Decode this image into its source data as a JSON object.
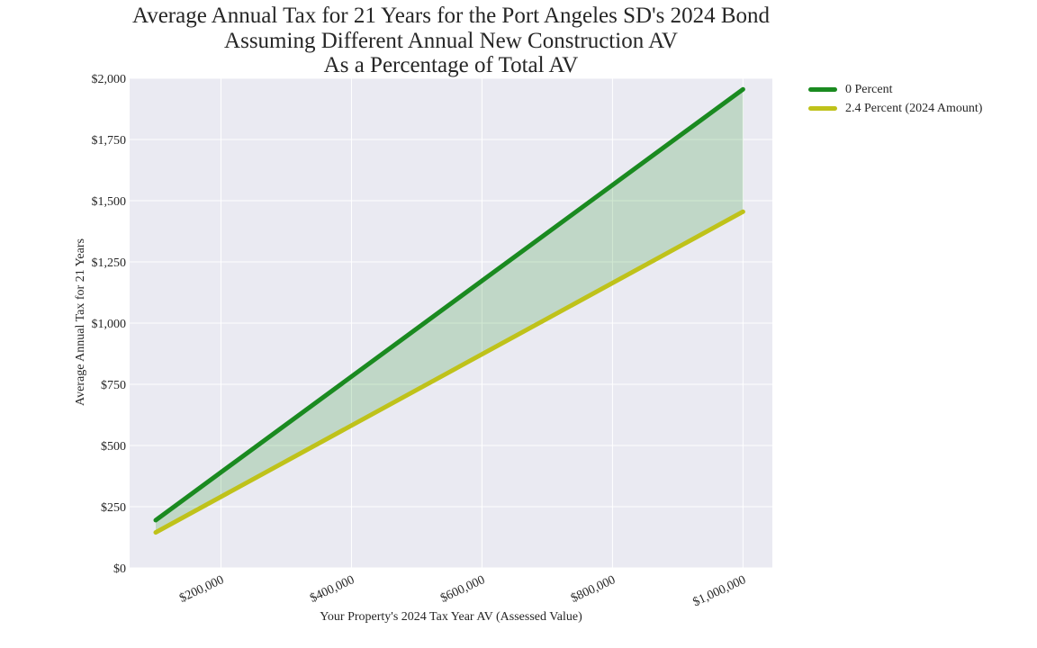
{
  "chart_data": {
    "type": "line",
    "title_lines": [
      "Average Annual Tax for 21 Years for the Port Angeles SD's 2024 Bond",
      "Assuming Different Annual New Construction AV",
      "As a Percentage of Total AV"
    ],
    "xlabel": "Your Property's 2024 Tax Year AV (Assessed Value)",
    "ylabel": "Average Annual Tax for 21 Years",
    "x": [
      100000,
      1000000
    ],
    "xlim": [
      60000,
      1045000
    ],
    "ylim": [
      0,
      2000
    ],
    "x_ticks": [
      200000,
      400000,
      600000,
      800000,
      1000000
    ],
    "x_tick_labels": [
      "$200,000",
      "$400,000",
      "$600,000",
      "$800,000",
      "$1,000,000"
    ],
    "y_ticks": [
      0,
      250,
      500,
      750,
      1000,
      1250,
      1500,
      1750,
      2000
    ],
    "y_tick_labels": [
      "$0",
      "$250",
      "$500",
      "$750",
      "$1,000",
      "$1,250",
      "$1,500",
      "$1,750",
      "$2,000"
    ],
    "series": [
      {
        "name": "0 Percent",
        "values": [
          195,
          1955
        ],
        "color": "#1a8a20"
      },
      {
        "name": "2.4 Percent (2024 Amount)",
        "values": [
          145,
          1455
        ],
        "color": "#bfc21a"
      }
    ],
    "fill_between": {
      "color": "#1a8a20",
      "opacity": 0.2
    },
    "background_color": "#eaeaf2",
    "grid": true,
    "legend_position": "outside-top-right"
  }
}
